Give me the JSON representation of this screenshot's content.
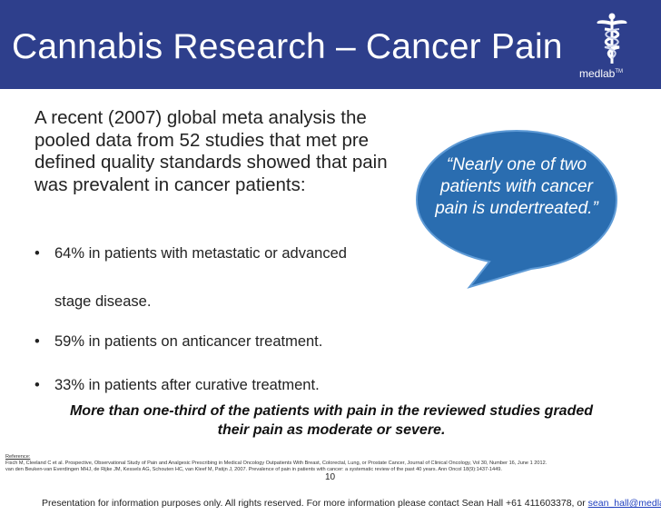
{
  "header": {
    "title": "Cannabis Research – Cancer Pain",
    "logo_text": "medlab",
    "logo_mark": "TM",
    "bg_color": "#2e3f8c"
  },
  "intro": "A recent (2007) global meta analysis the pooled data from 52 studies that met pre defined quality standards showed that pain was prevalent in cancer patients:",
  "bullets": [
    "64% in patients with metastatic or advanced",
    "59% in patients on anticancer treatment.",
    "33% in patients after curative treatment."
  ],
  "bullet_continuation": "stage disease.",
  "callout": {
    "text": "“Nearly one of two patients with cancer pain is undertreated.”",
    "color": "#2a6db0"
  },
  "summary": "More than one-third of the patients with pain in the reviewed studies graded their pain as moderate or severe.",
  "references": {
    "heading": "Reference:",
    "items": [
      "Fisch M, Cleeland C et al. Prospective, Observational Study of Pain and Analgesic Prescribing in Medical Oncology Outpatients With Breast, Colorectal, Lung, or Prostate Cancer, Journal of Clinical Oncology, Vol 30, Number 16, June 1 2012.",
      "van den Beuken-van Everdingen MHJ, de Rijke JM, Kessels AG, Schouten HC, van Kleef M, Patijn J, 2007. Prevalence of pain in patients with cancer: a systematic review of the past 40 years. Ann Oncol 18(9):1437-1449."
    ]
  },
  "page_number": "10",
  "footer": {
    "text": "Presentation for information purposes only.  All rights reserved. For more information please contact Sean Hall +61 411603378, or ",
    "email": "sean_hall@medlab.co"
  }
}
